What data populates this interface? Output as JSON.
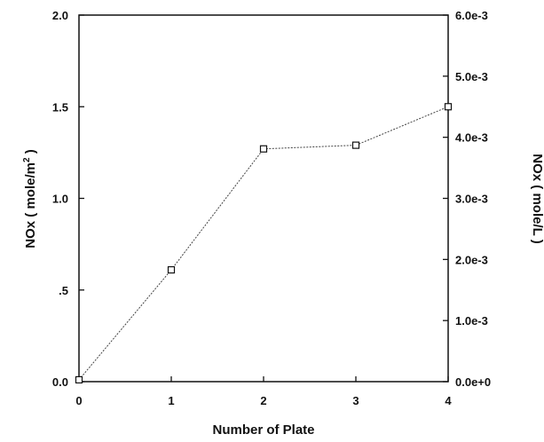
{
  "chart_data": {
    "type": "line",
    "xlabel": "Number of Plate",
    "ylabel_left": {
      "main": "NOx ( mole/m",
      "sup": "2",
      "close": " )"
    },
    "ylabel_right": "NOx ( mole/L )",
    "x": [
      0,
      1,
      2,
      3,
      4
    ],
    "xlim": [
      0,
      4
    ],
    "ylim_left": [
      0,
      2.0
    ],
    "ylim_right": [
      0,
      0.006
    ],
    "x_ticks": [
      "0",
      "1",
      "2",
      "3",
      "4"
    ],
    "y_ticks_left": [
      {
        "value": 0.0,
        "label": "0.0"
      },
      {
        "value": 0.5,
        "label": ".5"
      },
      {
        "value": 1.0,
        "label": "1.0"
      },
      {
        "value": 1.5,
        "label": "1.5"
      },
      {
        "value": 2.0,
        "label": "2.0"
      }
    ],
    "y_ticks_right": [
      {
        "value": 0.0,
        "label": "0.0e+0"
      },
      {
        "value": 0.001,
        "label": "1.0e-3"
      },
      {
        "value": 0.002,
        "label": "2.0e-3"
      },
      {
        "value": 0.003,
        "label": "3.0e-3"
      },
      {
        "value": 0.004,
        "label": "4.0e-3"
      },
      {
        "value": 0.005,
        "label": "5.0e-3"
      },
      {
        "value": 0.006,
        "label": "6.0e-3"
      }
    ],
    "series": [
      {
        "axis": "left",
        "marker": "square",
        "values": [
          0.01,
          0.61,
          1.27,
          1.29,
          1.5
        ]
      }
    ],
    "grid": false,
    "legend": "none"
  }
}
